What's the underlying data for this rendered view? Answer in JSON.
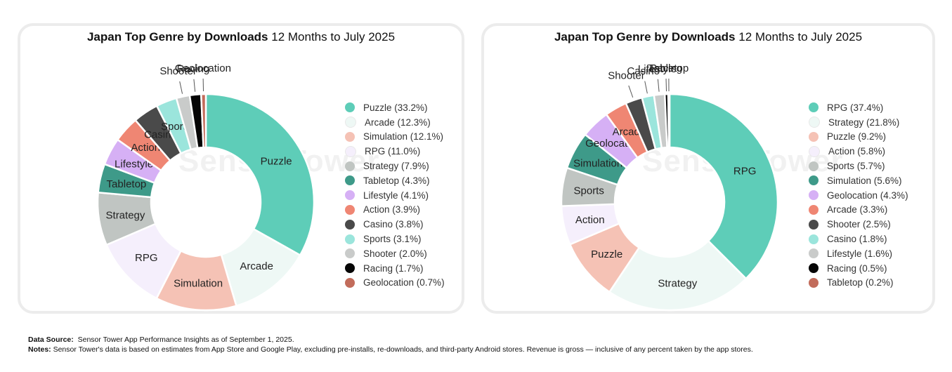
{
  "chart_data": [
    {
      "type": "pie",
      "title_bold": "Japan Top Genre by Downloads",
      "title_rest": "12 Months to July 2025",
      "categories": [
        "Puzzle",
        "Arcade",
        "Simulation",
        "RPG",
        "Strategy",
        "Tabletop",
        "Lifestyle",
        "Action",
        "Casino",
        "Sports",
        "Shooter",
        "Racing",
        "Geolocation"
      ],
      "values": [
        33.2,
        12.3,
        12.1,
        11.0,
        7.9,
        4.3,
        4.1,
        3.9,
        3.8,
        3.1,
        2.0,
        1.7,
        0.7
      ],
      "legend_labels": [
        "Puzzle (33.2%)",
        "Arcade (12.3%)",
        "Simulation (12.1%)",
        "RPG (11.0%)",
        "Strategy (7.9%)",
        "Tabletop (4.3%)",
        "Lifestyle (4.1%)",
        "Action (3.9%)",
        "Casino (3.8%)",
        "Sports (3.1%)",
        "Shooter (2.0%)",
        "Racing (1.7%)",
        "Geolocation (0.7%)"
      ],
      "colors": [
        "#5ecdb8",
        "#eef8f5",
        "#f5c2b5",
        "#f5effc",
        "#c0c5c2",
        "#3e9a89",
        "#d6b0f5",
        "#ef8673",
        "#4a4a4a",
        "#9be5dc",
        "#c9cbca",
        "#050505",
        "#c26c5b"
      ],
      "watermark": "SensorTower"
    },
    {
      "type": "pie",
      "title_bold": "Japan Top Genre by Downloads",
      "title_rest": "12 Months to July 2025",
      "categories": [
        "RPG",
        "Strategy",
        "Puzzle",
        "Action",
        "Sports",
        "Simulation",
        "Geolocation",
        "Arcade",
        "Shooter",
        "Casino",
        "Lifestyle",
        "Racing",
        "Tabletop"
      ],
      "values": [
        37.4,
        21.8,
        9.2,
        5.8,
        5.7,
        5.6,
        4.3,
        3.3,
        2.5,
        1.8,
        1.6,
        0.5,
        0.2
      ],
      "legend_labels": [
        "RPG (37.4%)",
        "Strategy (21.8%)",
        "Puzzle (9.2%)",
        "Action (5.8%)",
        "Sports (5.7%)",
        "Simulation (5.6%)",
        "Geolocation (4.3%)",
        "Arcade (3.3%)",
        "Shooter (2.5%)",
        "Casino (1.8%)",
        "Lifestyle (1.6%)",
        "Racing (0.5%)",
        "Tabletop (0.2%)"
      ],
      "colors": [
        "#5ecdb8",
        "#eef8f5",
        "#f5c2b5",
        "#f5effc",
        "#c0c5c2",
        "#3e9a89",
        "#d6b0f5",
        "#ef8673",
        "#4a4a4a",
        "#9be5dc",
        "#c9cbca",
        "#050505",
        "#c26c5b"
      ],
      "watermark": "SensorTower"
    }
  ],
  "footer": {
    "source_label": "Data Source:",
    "source_text": "Sensor Tower App Performance Insights as of September 1, 2025.",
    "notes_label": "Notes:",
    "notes_text": "Sensor Tower's data is based on estimates from App Store and Google Play, excluding pre-installs, re-downloads, and third-party Android stores. Revenue is gross — inclusive of any percent taken by the app stores."
  }
}
